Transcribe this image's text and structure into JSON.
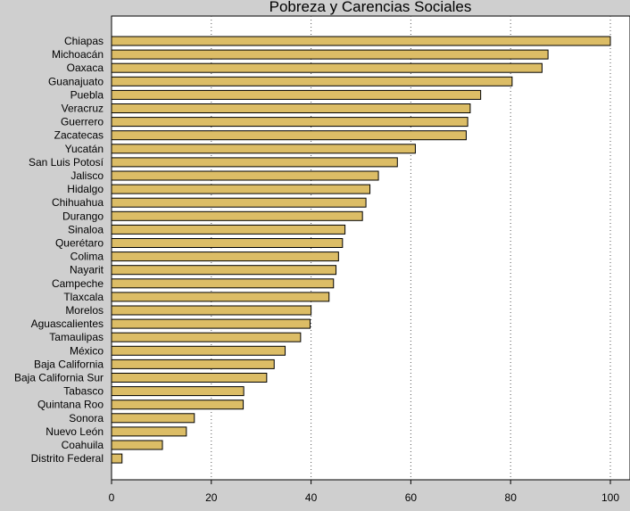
{
  "chart_data": {
    "type": "bar",
    "orientation": "horizontal",
    "title": "Pobreza y Carencias Sociales",
    "xlabel": "",
    "ylabel": "",
    "xlim": [
      0,
      104
    ],
    "xticks": [
      0,
      20,
      40,
      60,
      80,
      100
    ],
    "grid": true,
    "bar_color": "#dcbd66",
    "bar_edge_color": "#000000",
    "categories": [
      "Chiapas",
      "Michoacán",
      "Oaxaca",
      "Guanajuato",
      "Puebla",
      "Veracruz",
      "Guerrero",
      "Zacatecas",
      "Yucatán",
      "San Luis Potosí",
      "Jalisco",
      "Hidalgo",
      "Chihuahua",
      "Durango",
      "Sinaloa",
      "Querétaro",
      "Colima",
      "Nayarit",
      "Campeche",
      "Tlaxcala",
      "Morelos",
      "Aguascalientes",
      "Tamaulipas",
      "México",
      "Baja California",
      "Baja California Sur",
      "Tabasco",
      "Quintana Roo",
      "Sonora",
      "Nuevo León",
      "Coahuila",
      "Distrito Federal"
    ],
    "values": [
      100,
      87.5,
      86.3,
      80.3,
      74.0,
      71.9,
      71.4,
      71.1,
      60.9,
      57.3,
      53.5,
      51.8,
      51.0,
      50.3,
      46.8,
      46.3,
      45.5,
      45.0,
      44.5,
      43.6,
      40.0,
      39.8,
      37.9,
      34.8,
      32.6,
      31.1,
      26.5,
      26.4,
      16.6,
      15.0,
      10.2,
      2.1
    ]
  }
}
